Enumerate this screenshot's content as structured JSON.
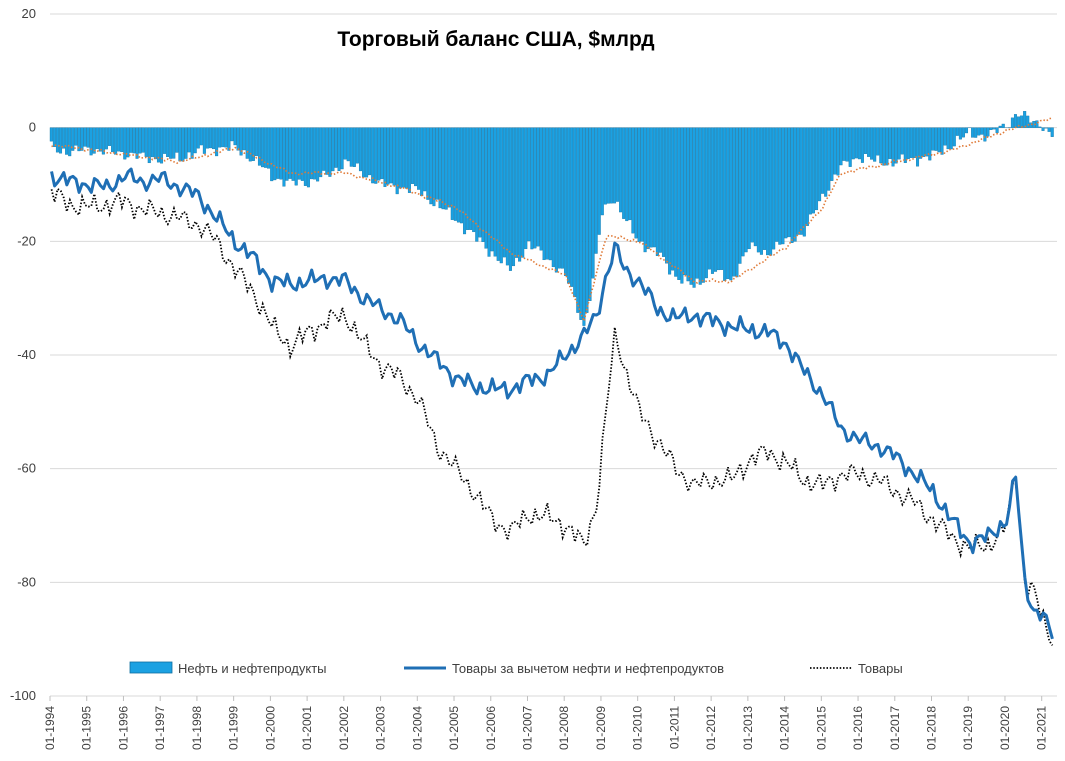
{
  "chart_data": {
    "type": "bar+line",
    "title": "Торговый баланс США, $млрд",
    "ylim": [
      -100,
      20
    ],
    "y_ticks": [
      20,
      0,
      -20,
      -40,
      -60,
      -80,
      -100
    ],
    "x_tick_labels": [
      "01-1994",
      "01-1995",
      "01-1996",
      "01-1997",
      "01-1998",
      "01-1999",
      "01-2000",
      "01-2001",
      "01-2002",
      "01-2003",
      "01-2004",
      "01-2005",
      "01-2006",
      "01-2007",
      "01-2008",
      "01-2009",
      "01-2010",
      "01-2011",
      "01-2012",
      "01-2013",
      "01-2014",
      "01-2015",
      "01-2016",
      "01-2017",
      "01-2018",
      "01-2019",
      "01-2020",
      "01-2021"
    ],
    "x_start_year": 1994,
    "grid": "horizontal",
    "legend_position": "bottom",
    "series": [
      {
        "name": "Нефть и нефтепродукты",
        "kind": "bar",
        "color": "#1BA1E2",
        "edge": "#0E6FA0",
        "keypoints": [
          [
            1994.0,
            -3.5
          ],
          [
            1994.5,
            -4.3
          ],
          [
            1995.0,
            -3.8
          ],
          [
            1995.5,
            -4.2
          ],
          [
            1996.0,
            -4.5
          ],
          [
            1996.5,
            -5.2
          ],
          [
            1997.0,
            -5.5
          ],
          [
            1997.5,
            -5.4
          ],
          [
            1998.0,
            -4.2
          ],
          [
            1998.5,
            -3.6
          ],
          [
            1999.0,
            -3.5
          ],
          [
            1999.5,
            -5.5
          ],
          [
            2000.0,
            -8.5
          ],
          [
            2000.5,
            -9.8
          ],
          [
            2001.0,
            -9.5
          ],
          [
            2001.5,
            -8.5
          ],
          [
            2002.0,
            -6.0
          ],
          [
            2002.5,
            -8.0
          ],
          [
            2003.0,
            -10.0
          ],
          [
            2003.5,
            -10.5
          ],
          [
            2004.0,
            -11.0
          ],
          [
            2004.5,
            -13.5
          ],
          [
            2005.0,
            -16.0
          ],
          [
            2005.5,
            -19.0
          ],
          [
            2006.0,
            -22.0
          ],
          [
            2006.5,
            -25.0
          ],
          [
            2007.0,
            -20.5
          ],
          [
            2007.5,
            -23.0
          ],
          [
            2008.0,
            -26.0
          ],
          [
            2008.3,
            -31.0
          ],
          [
            2008.5,
            -35.0
          ],
          [
            2008.75,
            -27.0
          ],
          [
            2009.0,
            -15.0
          ],
          [
            2009.3,
            -12.0
          ],
          [
            2009.6,
            -16.0
          ],
          [
            2010.0,
            -20.0
          ],
          [
            2010.5,
            -22.0
          ],
          [
            2011.0,
            -26.0
          ],
          [
            2011.5,
            -28.0
          ],
          [
            2012.0,
            -25.0
          ],
          [
            2012.5,
            -27.0
          ],
          [
            2013.0,
            -21.0
          ],
          [
            2013.5,
            -22.0
          ],
          [
            2014.0,
            -20.0
          ],
          [
            2014.5,
            -18.5
          ],
          [
            2015.0,
            -12.0
          ],
          [
            2015.5,
            -7.0
          ],
          [
            2016.0,
            -5.0
          ],
          [
            2016.5,
            -6.0
          ],
          [
            2017.0,
            -6.0
          ],
          [
            2017.5,
            -5.5
          ],
          [
            2018.0,
            -5.0
          ],
          [
            2018.5,
            -3.0
          ],
          [
            2019.0,
            -1.0
          ],
          [
            2019.5,
            -1.5
          ],
          [
            2020.0,
            0.5
          ],
          [
            2020.3,
            2.5
          ],
          [
            2020.6,
            1.5
          ],
          [
            2021.0,
            0.5
          ],
          [
            2021.2,
            -1.5
          ]
        ]
      },
      {
        "name": "Товары за вычетом нефти и нефтепродуктов",
        "kind": "line",
        "color": "#1F6FB5",
        "keypoints": [
          [
            1994.0,
            -8.5
          ],
          [
            1994.5,
            -9.5
          ],
          [
            1995.0,
            -10.0
          ],
          [
            1995.5,
            -10.5
          ],
          [
            1996.0,
            -8.5
          ],
          [
            1996.5,
            -9.5
          ],
          [
            1997.0,
            -9.0
          ],
          [
            1997.5,
            -10.5
          ],
          [
            1998.0,
            -12.0
          ],
          [
            1998.5,
            -16.0
          ],
          [
            1999.0,
            -20.0
          ],
          [
            1999.5,
            -23.0
          ],
          [
            2000.0,
            -27.0
          ],
          [
            2000.5,
            -27.5
          ],
          [
            2001.0,
            -27.0
          ],
          [
            2001.5,
            -26.5
          ],
          [
            2002.0,
            -27.0
          ],
          [
            2002.5,
            -30.0
          ],
          [
            2003.0,
            -32.0
          ],
          [
            2003.5,
            -34.0
          ],
          [
            2004.0,
            -38.0
          ],
          [
            2004.5,
            -41.0
          ],
          [
            2005.0,
            -44.0
          ],
          [
            2005.5,
            -45.5
          ],
          [
            2006.0,
            -46.0
          ],
          [
            2006.5,
            -46.0
          ],
          [
            2007.0,
            -44.5
          ],
          [
            2007.5,
            -43.5
          ],
          [
            2008.0,
            -40.0
          ],
          [
            2008.5,
            -36.5
          ],
          [
            2008.85,
            -33.0
          ],
          [
            2009.1,
            -26.0
          ],
          [
            2009.35,
            -21.0
          ],
          [
            2009.6,
            -25.0
          ],
          [
            2010.0,
            -27.0
          ],
          [
            2010.5,
            -32.0
          ],
          [
            2011.0,
            -33.5
          ],
          [
            2011.5,
            -33.0
          ],
          [
            2012.0,
            -34.0
          ],
          [
            2012.5,
            -35.0
          ],
          [
            2013.0,
            -35.5
          ],
          [
            2013.5,
            -36.0
          ],
          [
            2014.0,
            -38.0
          ],
          [
            2014.5,
            -43.0
          ],
          [
            2015.0,
            -47.0
          ],
          [
            2015.5,
            -53.0
          ],
          [
            2016.0,
            -55.0
          ],
          [
            2016.5,
            -56.0
          ],
          [
            2017.0,
            -58.0
          ],
          [
            2017.5,
            -61.0
          ],
          [
            2018.0,
            -64.0
          ],
          [
            2018.5,
            -69.0
          ],
          [
            2019.0,
            -73.0
          ],
          [
            2019.5,
            -72.0
          ],
          [
            2020.0,
            -69.0
          ],
          [
            2020.25,
            -61.5
          ],
          [
            2020.5,
            -80.0
          ],
          [
            2020.75,
            -85.0
          ],
          [
            2021.0,
            -86.0
          ],
          [
            2021.2,
            -89.0
          ]
        ]
      },
      {
        "name": "Товары",
        "kind": "dotted",
        "color": "#000000",
        "keypoints": [
          [
            1994.0,
            -11.5
          ],
          [
            1994.5,
            -13.5
          ],
          [
            1995.0,
            -14.0
          ],
          [
            1995.5,
            -13.5
          ],
          [
            1996.0,
            -13.0
          ],
          [
            1996.5,
            -14.5
          ],
          [
            1997.0,
            -15.0
          ],
          [
            1997.5,
            -16.0
          ],
          [
            1998.0,
            -17.0
          ],
          [
            1998.5,
            -20.0
          ],
          [
            1999.0,
            -25.0
          ],
          [
            1999.5,
            -29.0
          ],
          [
            2000.0,
            -35.0
          ],
          [
            2000.5,
            -38.5
          ],
          [
            2001.0,
            -36.0
          ],
          [
            2001.5,
            -34.0
          ],
          [
            2002.0,
            -33.0
          ],
          [
            2002.5,
            -38.0
          ],
          [
            2003.0,
            -42.0
          ],
          [
            2003.5,
            -44.0
          ],
          [
            2004.0,
            -48.0
          ],
          [
            2004.5,
            -56.0
          ],
          [
            2005.0,
            -60.0
          ],
          [
            2005.5,
            -64.0
          ],
          [
            2006.0,
            -69.0
          ],
          [
            2006.5,
            -71.0
          ],
          [
            2007.0,
            -68.0
          ],
          [
            2007.5,
            -68.5
          ],
          [
            2008.0,
            -70.0
          ],
          [
            2008.5,
            -73.5
          ],
          [
            2008.85,
            -66.0
          ],
          [
            2009.1,
            -50.0
          ],
          [
            2009.35,
            -36.0
          ],
          [
            2009.6,
            -42.0
          ],
          [
            2010.0,
            -50.0
          ],
          [
            2010.5,
            -55.0
          ],
          [
            2011.0,
            -60.0
          ],
          [
            2011.5,
            -63.0
          ],
          [
            2012.0,
            -62.0
          ],
          [
            2012.5,
            -62.0
          ],
          [
            2013.0,
            -58.5
          ],
          [
            2013.5,
            -57.0
          ],
          [
            2014.0,
            -59.0
          ],
          [
            2014.5,
            -62.0
          ],
          [
            2015.0,
            -63.0
          ],
          [
            2015.5,
            -61.0
          ],
          [
            2016.0,
            -61.0
          ],
          [
            2016.5,
            -62.0
          ],
          [
            2017.0,
            -64.0
          ],
          [
            2017.5,
            -66.0
          ],
          [
            2018.0,
            -69.0
          ],
          [
            2018.5,
            -72.0
          ],
          [
            2019.0,
            -74.0
          ],
          [
            2019.5,
            -73.5
          ],
          [
            2020.0,
            -70.0
          ],
          [
            2020.25,
            -60.5
          ],
          [
            2020.5,
            -80.0
          ],
          [
            2020.75,
            -82.0
          ],
          [
            2021.0,
            -86.5
          ],
          [
            2021.2,
            -89.5
          ]
        ]
      }
    ],
    "trend_line": {
      "style": "dotted",
      "color": "#E07B39",
      "keypoints": [
        [
          1994.0,
          -3.0
        ],
        [
          1997.5,
          -6.0
        ],
        [
          1999.0,
          -3.5
        ],
        [
          2000.5,
          -8.0
        ],
        [
          2002.0,
          -8.0
        ],
        [
          2003.5,
          -10.5
        ],
        [
          2005.0,
          -14.0
        ],
        [
          2006.5,
          -22.0
        ],
        [
          2008.0,
          -26.0
        ],
        [
          2008.5,
          -34.0
        ],
        [
          2009.1,
          -19.0
        ],
        [
          2010.0,
          -20.0
        ],
        [
          2011.5,
          -27.0
        ],
        [
          2012.5,
          -27.0
        ],
        [
          2014.0,
          -21.0
        ],
        [
          2015.0,
          -14.0
        ],
        [
          2015.5,
          -8.0
        ],
        [
          2017.0,
          -6.0
        ],
        [
          2018.5,
          -4.0
        ],
        [
          2020.0,
          -0.5
        ],
        [
          2021.2,
          1.5
        ]
      ]
    }
  }
}
